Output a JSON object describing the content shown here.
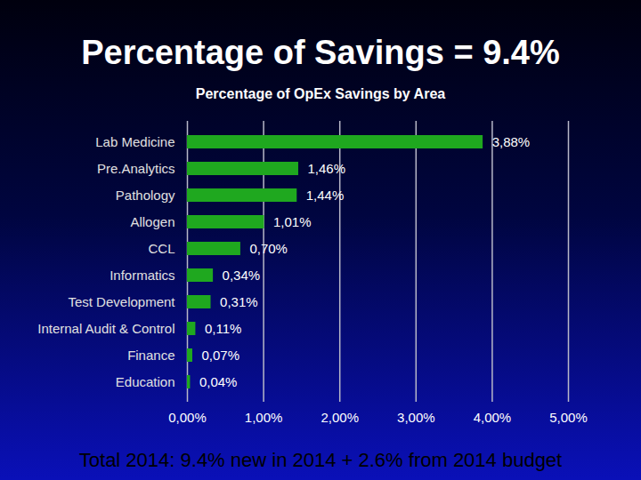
{
  "chart_data": {
    "type": "bar",
    "orientation": "horizontal",
    "title": "Percentage of Savings = 9.4%",
    "subtitle": "Percentage of OpEx Savings by Area",
    "annotations": [
      "Total 2014: 9.4% new in 2014 + 2.6% from 2014 budget"
    ],
    "categories": [
      "Lab Medicine",
      "Pre.Analytics",
      "Pathology",
      "Allogen",
      "CCL",
      "Informatics",
      "Test Development",
      "Internal Audit & Control",
      "Finance",
      "Education"
    ],
    "values": [
      3.88,
      1.46,
      1.44,
      1.01,
      0.7,
      0.34,
      0.31,
      0.11,
      0.07,
      0.04
    ],
    "value_labels": [
      "3,88%",
      "1,46%",
      "1,44%",
      "1,01%",
      "0,70%",
      "0,34%",
      "0,31%",
      "0,11%",
      "0,07%",
      "0,04%"
    ],
    "color": "#1fa81f",
    "xlim": [
      0,
      5
    ],
    "xticks": [
      {
        "value": 0,
        "label": "0,00%"
      },
      {
        "value": 1,
        "label": "1,00%"
      },
      {
        "value": 2,
        "label": "2,00%"
      },
      {
        "value": 3,
        "label": "3,00%"
      },
      {
        "value": 4,
        "label": "4,00%"
      },
      {
        "value": 5,
        "label": "5,00%"
      }
    ],
    "grid": true,
    "data_labels": true
  }
}
